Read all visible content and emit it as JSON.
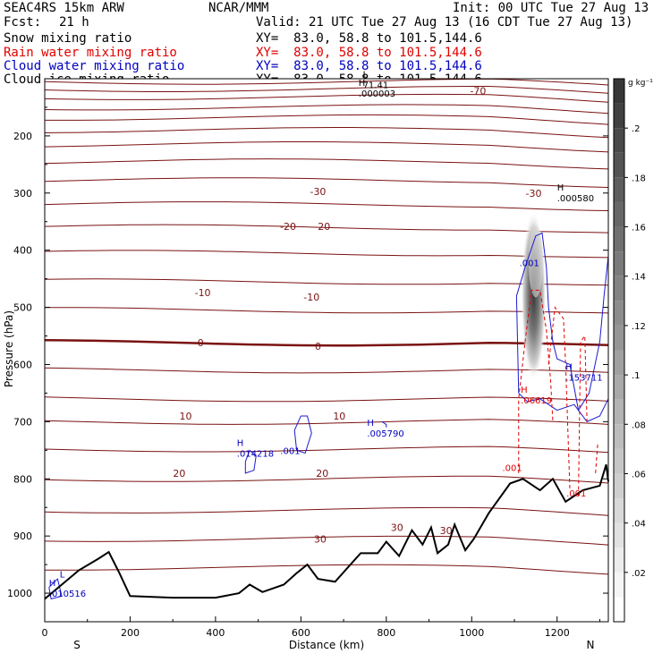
{
  "header": {
    "model": "SEAC4RS 15km ARW",
    "center": "NCAR/MMM",
    "init": "Init: 00 UTC Tue 27 Aug 13",
    "fcst_label": "Fcst:",
    "fcst_value": "21 h",
    "valid": "Valid: 21 UTC Tue 27 Aug 13 (16 CDT Tue 27 Aug 13)"
  },
  "fields": [
    {
      "name": "Snow mixing ratio",
      "xy": "XY=  83.0, 58.8 to 101.5,144.6",
      "color": "#000000"
    },
    {
      "name": "Rain water mixing ratio",
      "xy": "XY=  83.0, 58.8 to 101.5,144.6",
      "color": "#e00000"
    },
    {
      "name": "Cloud water mixing ratio",
      "xy": "XY=  83.0, 58.8 to 101.5,144.6",
      "color": "#0000c0"
    },
    {
      "name": "Cloud ice mixing ratio",
      "xy": "XY=  83.0, 58.8 to 101.5,144.6",
      "color": "#000000"
    }
  ],
  "chart_data": {
    "type": "contour",
    "xlabel": "Distance (km)",
    "ylabel": "Pressure (hPa)",
    "xlim": [
      0,
      1320
    ],
    "ylim": [
      1050,
      100
    ],
    "x_ticks": [
      0,
      200,
      400,
      600,
      800,
      1000,
      1200
    ],
    "y_ticks": [
      200,
      300,
      400,
      500,
      600,
      700,
      800,
      900,
      1000
    ],
    "x_end_labels": {
      "left": "S",
      "right": "N"
    },
    "colorbar": {
      "unit_label": "g kg⁻¹",
      "ticks": [
        ".02",
        ".04",
        ".06",
        ".08",
        ".1",
        ".12",
        ".14",
        ".16",
        ".18",
        ".2"
      ],
      "values": [
        0.02,
        0.04,
        0.06,
        0.08,
        0.1,
        0.12,
        0.14,
        0.16,
        0.18,
        0.2
      ],
      "range": [
        0,
        0.22
      ]
    },
    "temperature_labels": [
      {
        "text": "-70",
        "x": 1015,
        "p": 121
      },
      {
        "text": "-30",
        "x": 640,
        "p": 297
      },
      {
        "text": "-30",
        "x": 1145,
        "p": 300
      },
      {
        "text": "-20",
        "x": 570,
        "p": 358
      },
      {
        "text": "-20",
        "x": 650,
        "p": 358
      },
      {
        "text": "-10",
        "x": 370,
        "p": 474
      },
      {
        "text": "-10",
        "x": 625,
        "p": 482
      },
      {
        "text": "0",
        "x": 365,
        "p": 562
      },
      {
        "text": "0",
        "x": 640,
        "p": 568
      },
      {
        "text": "10",
        "x": 330,
        "p": 690
      },
      {
        "text": "10",
        "x": 690,
        "p": 690
      },
      {
        "text": "20",
        "x": 315,
        "p": 790
      },
      {
        "text": "20",
        "x": 650,
        "p": 790
      },
      {
        "text": "30",
        "x": 645,
        "p": 905
      },
      {
        "text": "30",
        "x": 825,
        "p": 885
      },
      {
        "text": "30",
        "x": 940,
        "p": 890
      }
    ],
    "extrema": [
      {
        "mark": "L",
        "value": "71.41",
        "x": 745,
        "p": 110,
        "color": "#000000"
      },
      {
        "mark": "H",
        "value": ".000003",
        "x": 735,
        "p": 125,
        "color": "#000000"
      },
      {
        "mark": "H",
        "value": ".000580",
        "x": 1200,
        "p": 308,
        "color": "#000000"
      },
      {
        "mark": "H",
        "value": ".014218",
        "x": 450,
        "p": 755,
        "color": "#0000c0"
      },
      {
        "mark": "H",
        "value": ".005790",
        "x": 755,
        "p": 720,
        "color": "#0000c0"
      },
      {
        "mark": "H",
        "value": ".153711",
        "x": 1220,
        "p": 622,
        "color": "#0000c0"
      },
      {
        "mark": "H",
        "value": ".06619",
        "x": 1115,
        "p": 662,
        "color": "#e00000"
      },
      {
        "mark": "H",
        "value": ".010516",
        "x": 10,
        "p": 1000,
        "color": "#0000c0"
      },
      {
        "mark": "L",
        "value": "",
        "x": 35,
        "p": 985,
        "color": "#0000c0"
      }
    ],
    "contour_labels": [
      {
        "text": ".001",
        "x": 1135,
        "p": 422,
        "color": "#0000c0"
      },
      {
        "text": ".001",
        "x": 575,
        "p": 750,
        "color": "#0000c0"
      },
      {
        "text": ".001",
        "x": 1095,
        "p": 780,
        "color": "#e00000"
      },
      {
        "text": ".001",
        "x": 1245,
        "p": 825,
        "color": "#e00000"
      }
    ],
    "terrain": [
      [
        0,
        1010
      ],
      [
        40,
        985
      ],
      [
        80,
        960
      ],
      [
        125,
        940
      ],
      [
        150,
        928
      ],
      [
        175,
        965
      ],
      [
        200,
        1005
      ],
      [
        300,
        1008
      ],
      [
        400,
        1008
      ],
      [
        455,
        1000
      ],
      [
        480,
        985
      ],
      [
        510,
        998
      ],
      [
        560,
        985
      ],
      [
        590,
        965
      ],
      [
        615,
        950
      ],
      [
        640,
        975
      ],
      [
        680,
        980
      ],
      [
        740,
        930
      ],
      [
        780,
        930
      ],
      [
        800,
        910
      ],
      [
        830,
        935
      ],
      [
        860,
        890
      ],
      [
        885,
        915
      ],
      [
        905,
        885
      ],
      [
        920,
        930
      ],
      [
        945,
        915
      ],
      [
        960,
        880
      ],
      [
        985,
        925
      ],
      [
        1005,
        905
      ],
      [
        1040,
        860
      ],
      [
        1090,
        808
      ],
      [
        1120,
        800
      ],
      [
        1160,
        820
      ],
      [
        1190,
        800
      ],
      [
        1220,
        840
      ],
      [
        1260,
        820
      ],
      [
        1300,
        812
      ],
      [
        1315,
        775
      ],
      [
        1320,
        805
      ]
    ]
  }
}
